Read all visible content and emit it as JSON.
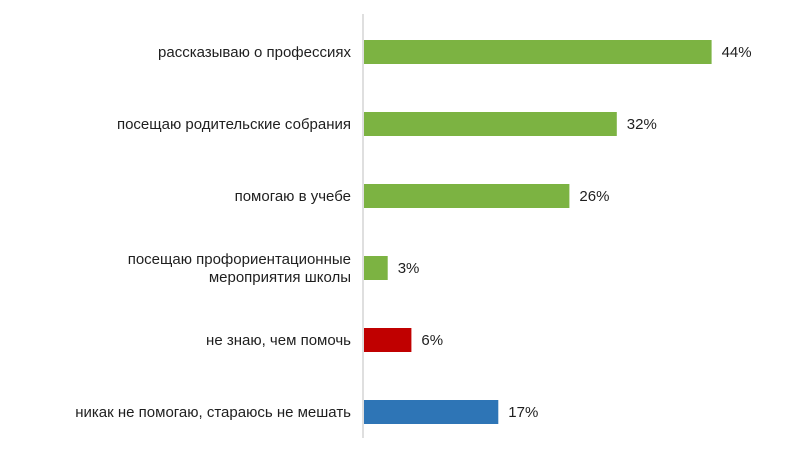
{
  "chart_data": {
    "type": "bar",
    "orientation": "horizontal",
    "categories": [
      [
        "рассказываю о профессиях"
      ],
      [
        "посещаю родительские собрания"
      ],
      [
        "помогаю в учебе"
      ],
      [
        "посещаю профориентационные",
        "мероприятия школы"
      ],
      [
        "не знаю, чем помочь"
      ],
      [
        "никак не помогаю, стараюсь не мешать"
      ]
    ],
    "values": [
      44,
      32,
      26,
      3,
      6,
      17
    ],
    "value_labels": [
      "44%",
      "32%",
      "26%",
      "3%",
      "6%",
      "17%"
    ],
    "colors": [
      "#7cb342",
      "#7cb342",
      "#7cb342",
      "#7cb342",
      "#c00000",
      "#2e75b6"
    ],
    "xlim": [
      0,
      50
    ],
    "grid": false,
    "legend": "none"
  }
}
